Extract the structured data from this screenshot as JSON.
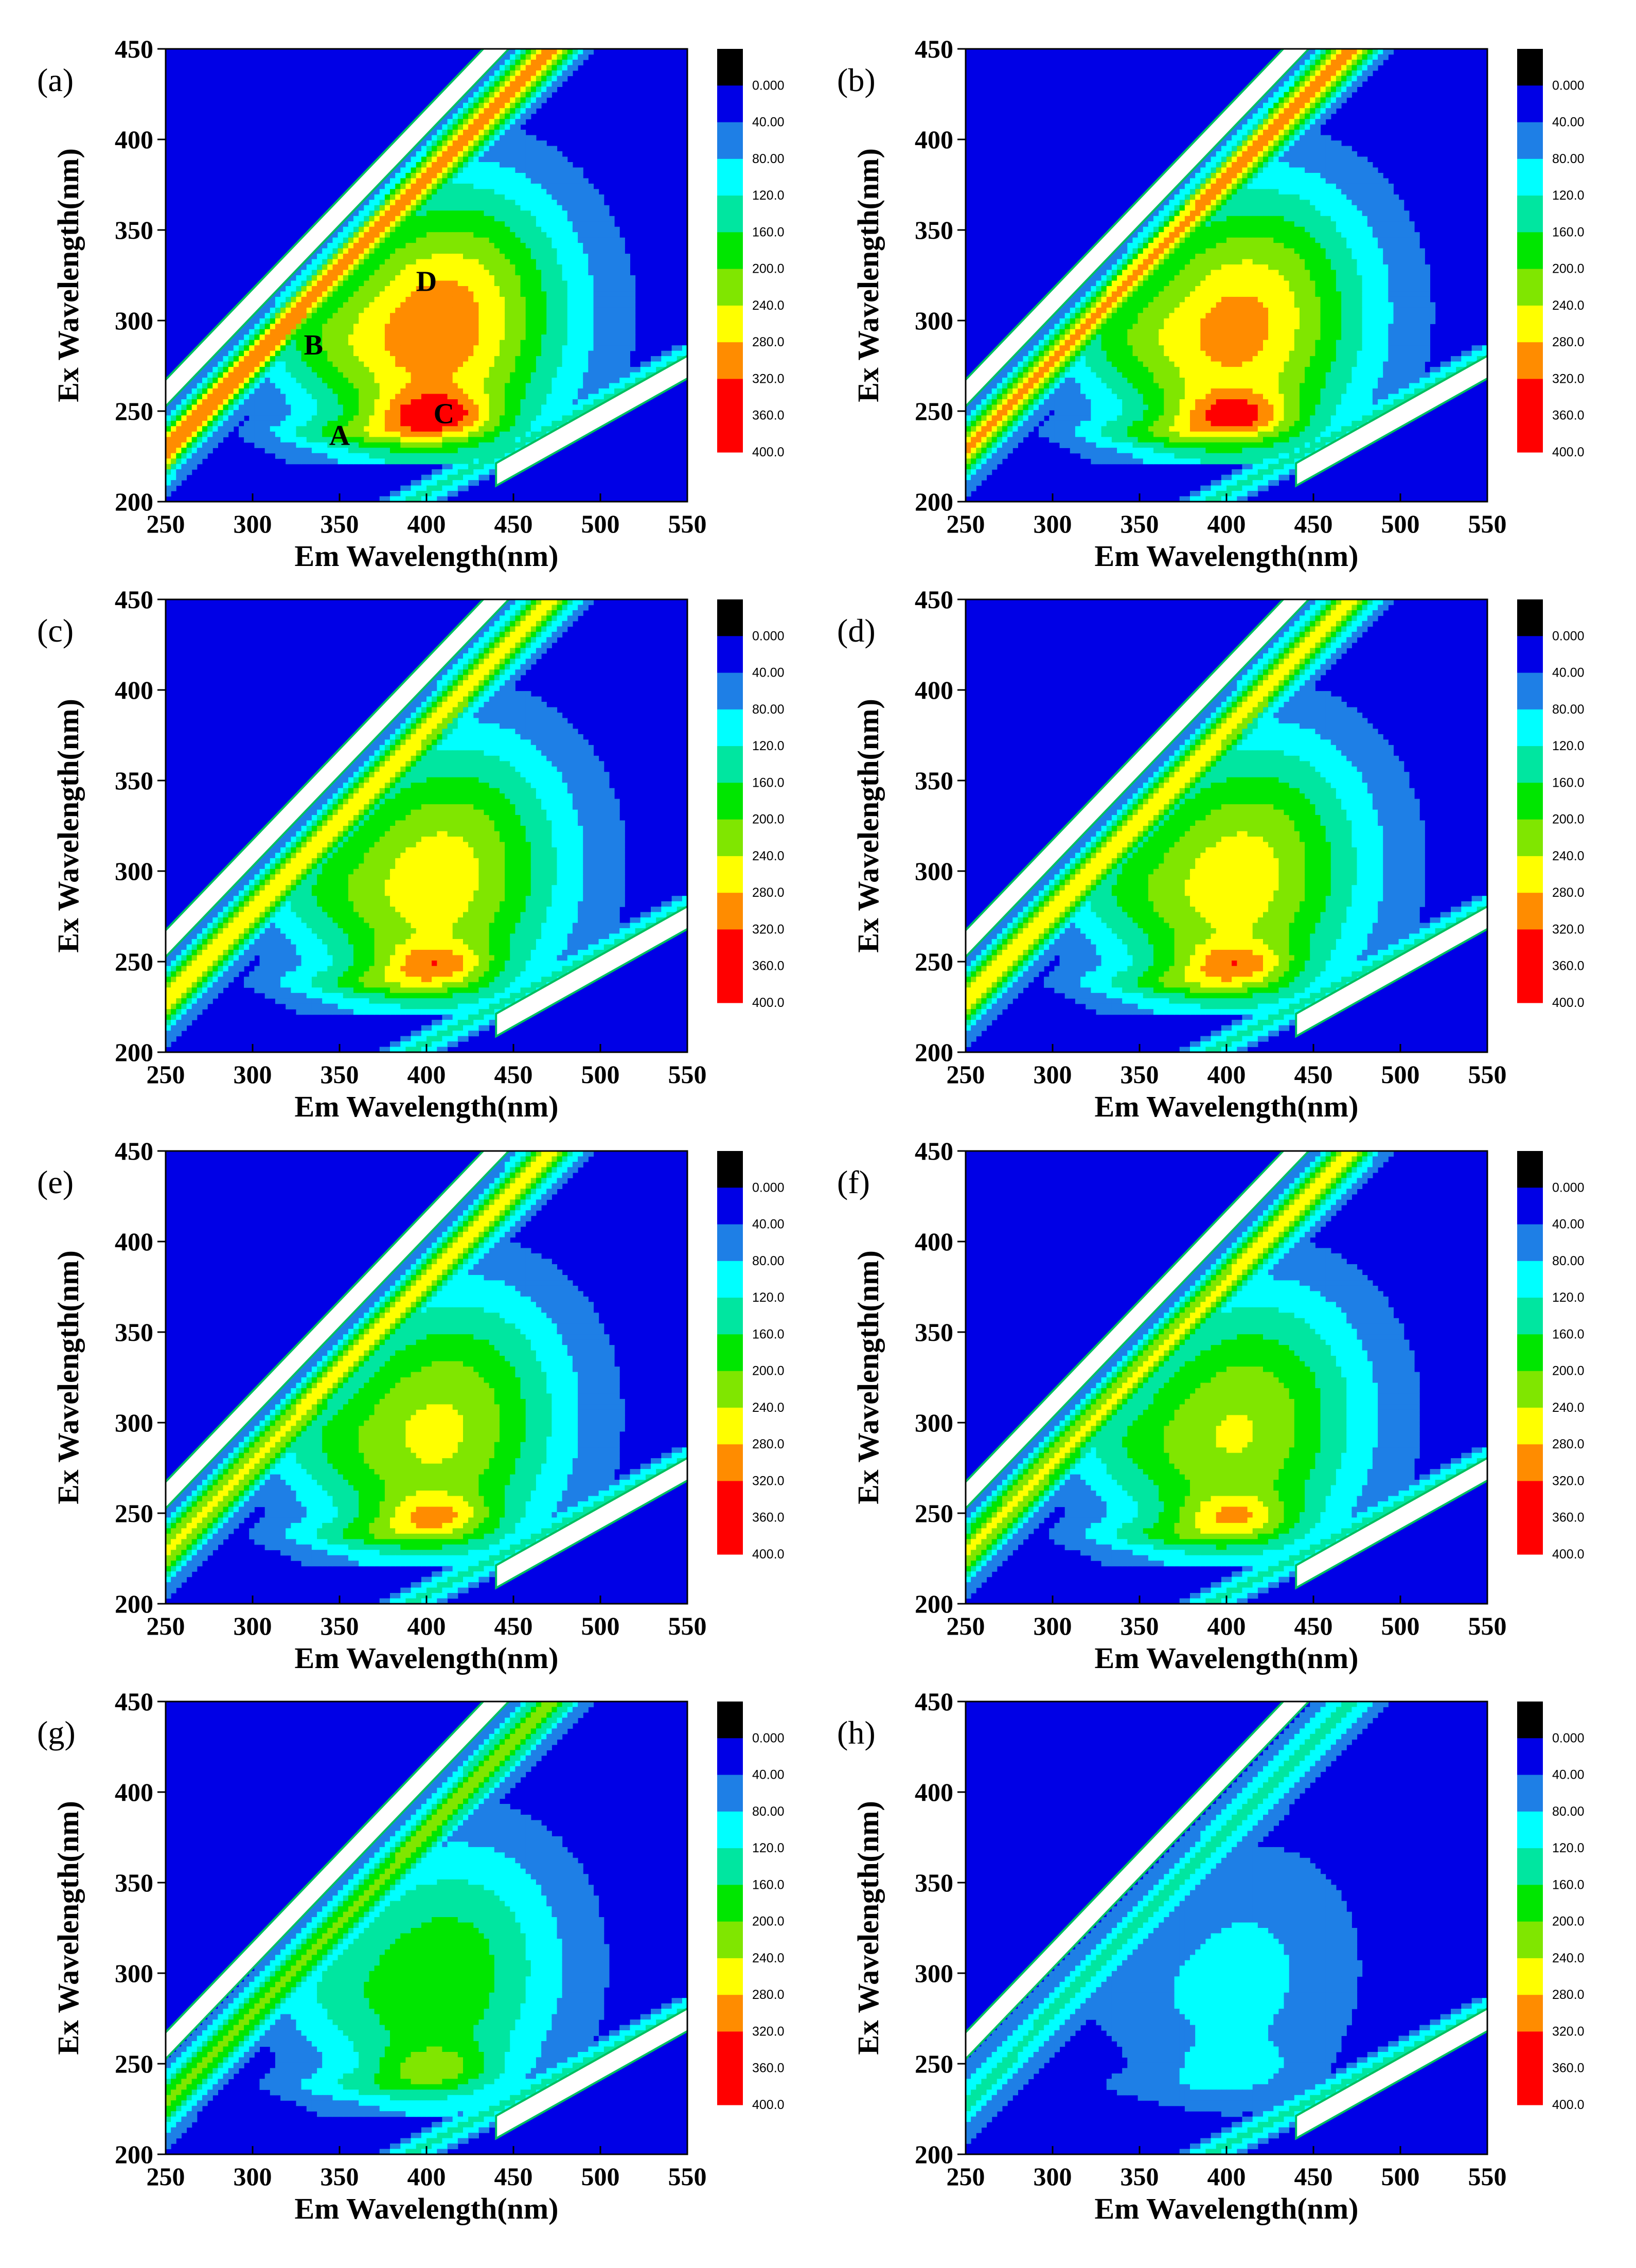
{
  "chart_data": [
    {
      "type": "heatmap",
      "panel_label": "(a)",
      "xlabel": "Em Wavelength(nm)",
      "ylabel": "Ex Wavelength(nm)",
      "xlim": [
        250,
        550
      ],
      "ylim": [
        200,
        450
      ],
      "colorbar": [
        "0.000",
        "40.00",
        "80.00",
        "120.0",
        "160.0",
        "200.0",
        "240.0",
        "280.0",
        "320.0",
        "360.0",
        "400.0"
      ],
      "peaks": [
        {
          "label": "A",
          "em": 350,
          "ex": 237
        },
        {
          "label": "B",
          "em": 335,
          "ex": 287
        },
        {
          "label": "C",
          "em": 410,
          "ex": 249
        },
        {
          "label": "D",
          "em": 400,
          "ex": 322
        }
      ],
      "intensity_scale": 1.0
    },
    {
      "type": "heatmap",
      "panel_label": "(b)",
      "xlabel": "Em Wavelength(nm)",
      "ylabel": "Ex Wavelength(nm)",
      "xlim": [
        250,
        550
      ],
      "ylim": [
        200,
        450
      ],
      "colorbar": [
        "0.000",
        "40.00",
        "80.00",
        "120.0",
        "160.0",
        "200.0",
        "240.0",
        "280.0",
        "320.0",
        "360.0",
        "400.0"
      ],
      "peaks": [],
      "intensity_scale": 0.95
    },
    {
      "type": "heatmap",
      "panel_label": "(c)",
      "xlabel": "Em Wavelength(nm)",
      "ylabel": "Ex Wavelength(nm)",
      "xlim": [
        250,
        550
      ],
      "ylim": [
        200,
        450
      ],
      "colorbar": [
        "0.000",
        "40.00",
        "80.00",
        "120.0",
        "160.0",
        "200.0",
        "240.0",
        "280.0",
        "320.0",
        "360.0",
        "400.0"
      ],
      "peaks": [],
      "intensity_scale": 0.85
    },
    {
      "type": "heatmap",
      "panel_label": "(d)",
      "xlabel": "Em Wavelength(nm)",
      "ylabel": "Ex Wavelength(nm)",
      "xlim": [
        250,
        550
      ],
      "ylim": [
        200,
        450
      ],
      "colorbar": [
        "0.000",
        "40.00",
        "80.00",
        "120.0",
        "160.0",
        "200.0",
        "240.0",
        "280.0",
        "320.0",
        "360.0",
        "400.0"
      ],
      "peaks": [],
      "intensity_scale": 0.85
    },
    {
      "type": "heatmap",
      "panel_label": "(e)",
      "xlabel": "Em Wavelength(nm)",
      "ylabel": "Ex Wavelength(nm)",
      "xlim": [
        250,
        550
      ],
      "ylim": [
        200,
        450
      ],
      "colorbar": [
        "0.000",
        "40.00",
        "80.00",
        "120.0",
        "160.0",
        "200.0",
        "240.0",
        "280.0",
        "320.0",
        "360.0",
        "400.0"
      ],
      "peaks": [],
      "intensity_scale": 0.8
    },
    {
      "type": "heatmap",
      "panel_label": "(f)",
      "xlabel": "Em Wavelength(nm)",
      "ylabel": "Ex Wavelength(nm)",
      "xlim": [
        250,
        550
      ],
      "ylim": [
        200,
        450
      ],
      "colorbar": [
        "0.000",
        "40.00",
        "80.00",
        "120.0",
        "160.0",
        "200.0",
        "240.0",
        "280.0",
        "320.0",
        "360.0",
        "400.0"
      ],
      "peaks": [],
      "intensity_scale": 0.78
    },
    {
      "type": "heatmap",
      "panel_label": "(g)",
      "xlabel": "Em Wavelength(nm)",
      "ylabel": "Ex Wavelength(nm)",
      "xlim": [
        250,
        550
      ],
      "ylim": [
        200,
        450
      ],
      "colorbar": [
        "0.000",
        "40.00",
        "80.00",
        "120.0",
        "160.0",
        "200.0",
        "240.0",
        "280.0",
        "320.0",
        "360.0",
        "400.0"
      ],
      "peaks": [],
      "intensity_scale": 0.62
    },
    {
      "type": "heatmap",
      "panel_label": "(h)",
      "xlabel": "Em Wavelength(nm)",
      "ylabel": "Ex Wavelength(nm)",
      "xlim": [
        250,
        550
      ],
      "ylim": [
        200,
        450
      ],
      "colorbar": [
        "0.000",
        "40.00",
        "80.00",
        "120.0",
        "160.0",
        "200.0",
        "240.0",
        "280.0",
        "320.0",
        "360.0",
        "400.0"
      ],
      "peaks": [],
      "intensity_scale": 0.3
    }
  ],
  "xticks": [
    250,
    300,
    350,
    400,
    450,
    500,
    550
  ],
  "yticks": [
    200,
    250,
    300,
    350,
    400,
    450
  ],
  "colors": {
    "levels": [
      "#000000",
      "#0000e6",
      "#1e7fe6",
      "#00ffff",
      "#00e6a0",
      "#00e600",
      "#80e600",
      "#ffff00",
      "#ff8c00",
      "#ff0000",
      "#ff0000"
    ],
    "scatter_band": "#ffffff"
  }
}
